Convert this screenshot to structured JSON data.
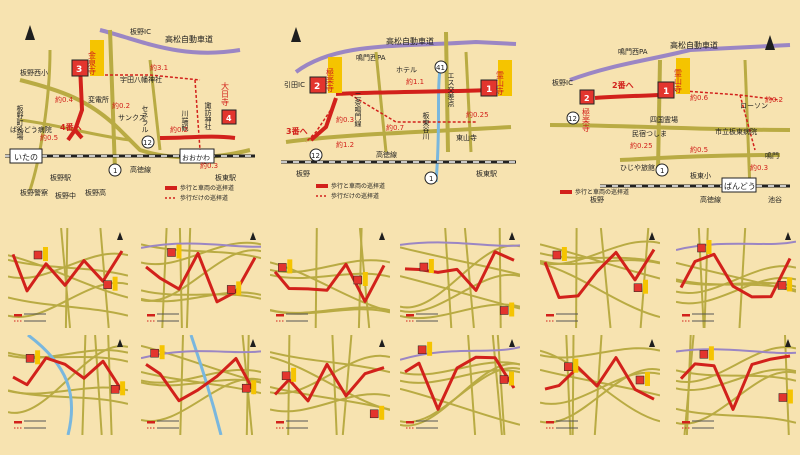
{
  "colors": {
    "background": "#f7e3b0",
    "route_car_walk": "#d2211b",
    "route_walk": "#d2211b",
    "road": "#b9ab43",
    "expressway": "#9b86c4",
    "river": "#79b7de",
    "rail": "#222222",
    "temple_fill": "#e3352e",
    "temple_label_bg": "#f5c400",
    "map_text": "#1e1e1e"
  },
  "map1": {
    "temple_no": "3",
    "temple_label": "金泉寺",
    "temple_no_b": "4",
    "temple_label_b": "大日寺",
    "label_4": "4番へ",
    "expressway_label": "高松自動車道",
    "ic_label": "板野IC",
    "road_label": "宇田八幡神社",
    "station_a": "いたの",
    "station_b": "おおかわ",
    "station_a_name": "板野駅",
    "station_b_name": "板東駅",
    "line_label": "高徳線",
    "place_1": "ばんどう病院",
    "place_2": "板野町役場",
    "place_3": "板野警察",
    "place_4": "サンクス",
    "place_5": "変電所",
    "place_6": "セネラル",
    "place_7": "諏訪神社",
    "place_8": "川端観",
    "place_9": "板野西小",
    "place_10": "板野中",
    "place_11": "板野高",
    "dist_1": "約0.4",
    "dist_2": "約0.5",
    "dist_3": "約0.2",
    "dist_4": "約3.1",
    "dist_5": "約0.2",
    "dist_6": "約0.3",
    "route_12": "12",
    "route_1": "1",
    "legend_car_walk": "歩行と車両の巡拝道",
    "legend_walk": "歩行だけの巡拝道"
  },
  "map2": {
    "temple_no": "2",
    "temple_label": "極楽寺",
    "temple_no_b": "1",
    "temple_label_b": "霊山寺",
    "label_3": "3番へ",
    "expressway_label": "高松自動車道",
    "ic_label": "鳴門西PA",
    "ic_label_2": "引田IC",
    "place_1": "二条鳴門線",
    "place_2": "東山寺",
    "place_3": "板東谷川",
    "place_4": "エス交差点",
    "place_5": "ホテル",
    "dist_1": "約1.1",
    "dist_2": "約0.7",
    "dist_3": "約0.3",
    "dist_4": "約0.25",
    "dist_5": "約1.2",
    "line_label": "高徳線",
    "station_a": "板野",
    "station_b": "板東駅",
    "route_12": "12",
    "route_41": "41",
    "route_1": "1",
    "legend_car_walk": "歩行と車両の巡拝道",
    "legend_walk": "歩行だけの巡拝道"
  },
  "map3": {
    "temple_no": "1",
    "temple_label": "霊山寺",
    "temple_no_b": "2",
    "temple_label_b": "極楽寺",
    "label_2": "2番へ",
    "expressway_label": "高松自動車道",
    "pa_label": "鳴門西PA",
    "ic_label": "板野IC",
    "place_1": "民宿つしま",
    "place_2": "四国霊場",
    "place_3": "ひじや旅館",
    "place_4": "市立板東病院",
    "place_5": "ローソン",
    "place_6": "板東小",
    "dist_1": "約0.6",
    "dist_2": "約0.25",
    "dist_3": "約0.5",
    "dist_4": "約0.2",
    "dist_5": "約0.3",
    "station_label": "ばんどう",
    "station_left": "板野",
    "station_right": "池谷",
    "line_label": "高徳線",
    "route_12": "12",
    "route_1": "1",
    "naruto": "鳴門",
    "legend_car_walk": "歩行と車両の巡拝道"
  },
  "thumbs": [
    {
      "id": "t1"
    },
    {
      "id": "t2"
    },
    {
      "id": "t3"
    },
    {
      "id": "t4"
    },
    {
      "id": "t5"
    },
    {
      "id": "t6"
    },
    {
      "id": "t7"
    },
    {
      "id": "t8"
    },
    {
      "id": "t9"
    },
    {
      "id": "t10"
    },
    {
      "id": "t11"
    },
    {
      "id": "t12"
    }
  ]
}
